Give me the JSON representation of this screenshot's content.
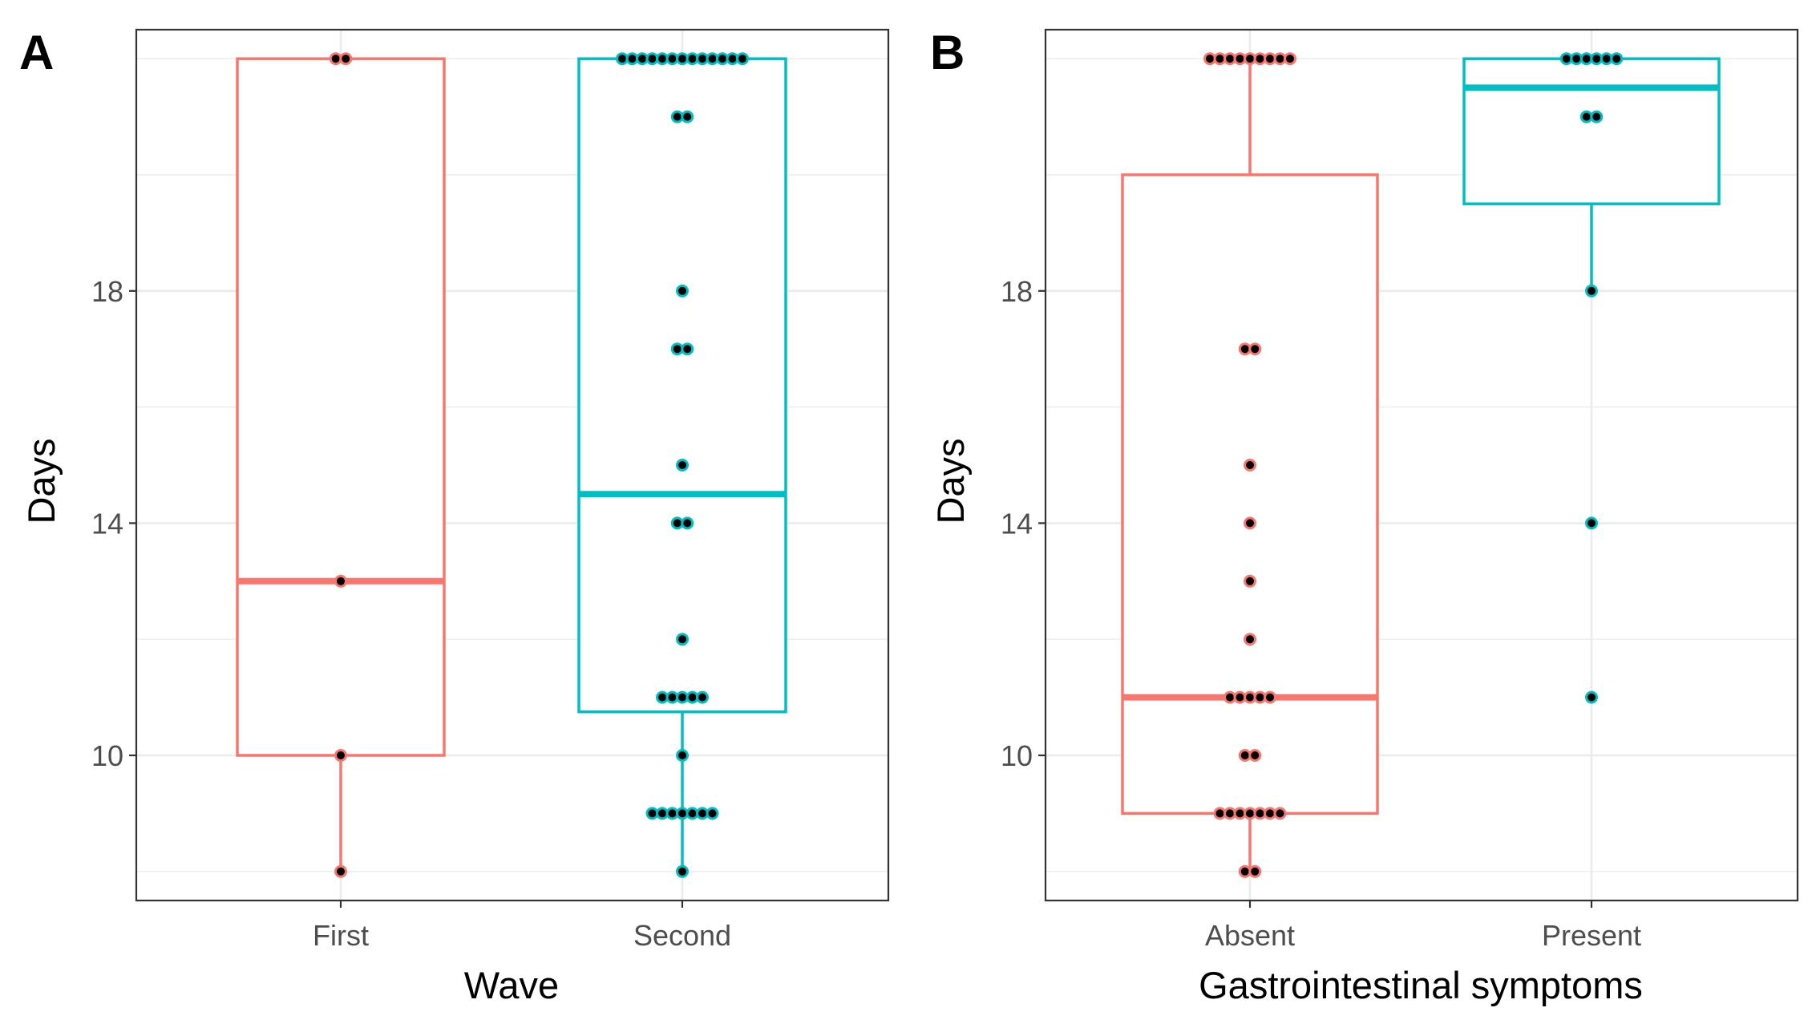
{
  "colors": {
    "red": "#F8766D",
    "teal": "#00BFC4",
    "point": "#000000"
  },
  "chart_data": [
    {
      "type": "boxplot",
      "panel": "A",
      "xlabel": "Wave",
      "ylabel": "Days",
      "ylim": [
        7.5,
        22.5
      ],
      "yticks": [
        10,
        14,
        18
      ],
      "yticklabels": [
        "10",
        "14",
        "18"
      ],
      "categories": [
        "First",
        "Second"
      ],
      "groups": [
        {
          "name": "First",
          "color": "red",
          "box": {
            "q1": 10,
            "median": 13,
            "q3": 22,
            "whisker_low": 8,
            "whisker_high": 22
          },
          "points": [
            {
              "y": 22,
              "count": 2
            },
            {
              "y": 13,
              "count": 1
            },
            {
              "y": 10,
              "count": 1
            },
            {
              "y": 8,
              "count": 1
            }
          ]
        },
        {
          "name": "Second",
          "color": "teal",
          "box": {
            "q1": 10.75,
            "median": 14.5,
            "q3": 22,
            "whisker_low": 8,
            "whisker_high": 22
          },
          "points": [
            {
              "y": 22,
              "count": 13
            },
            {
              "y": 21,
              "count": 2
            },
            {
              "y": 18,
              "count": 1
            },
            {
              "y": 17,
              "count": 2
            },
            {
              "y": 15,
              "count": 1
            },
            {
              "y": 14,
              "count": 2
            },
            {
              "y": 12,
              "count": 1
            },
            {
              "y": 11,
              "count": 5
            },
            {
              "y": 10,
              "count": 1
            },
            {
              "y": 9,
              "count": 7
            },
            {
              "y": 8,
              "count": 1
            }
          ]
        }
      ]
    },
    {
      "type": "boxplot",
      "panel": "B",
      "xlabel": "Gastrointestinal symptoms",
      "ylabel": "Days",
      "ylim": [
        7.5,
        22.5
      ],
      "yticks": [
        10,
        14,
        18
      ],
      "yticklabels": [
        "10",
        "14",
        "18"
      ],
      "categories": [
        "Absent",
        "Present"
      ],
      "groups": [
        {
          "name": "Absent",
          "color": "red",
          "box": {
            "q1": 9,
            "median": 11,
            "q3": 20,
            "whisker_low": 8,
            "whisker_high": 22
          },
          "points": [
            {
              "y": 22,
              "count": 9
            },
            {
              "y": 17,
              "count": 2
            },
            {
              "y": 15,
              "count": 1
            },
            {
              "y": 14,
              "count": 1
            },
            {
              "y": 13,
              "count": 1
            },
            {
              "y": 12,
              "count": 1
            },
            {
              "y": 11,
              "count": 5
            },
            {
              "y": 10,
              "count": 2
            },
            {
              "y": 9,
              "count": 7
            },
            {
              "y": 8,
              "count": 2
            }
          ]
        },
        {
          "name": "Present",
          "color": "teal",
          "box": {
            "q1": 19.5,
            "median": 21.5,
            "q3": 22,
            "whisker_low": 18,
            "whisker_high": 22
          },
          "points": [
            {
              "y": 22,
              "count": 6
            },
            {
              "y": 21,
              "count": 2
            },
            {
              "y": 18,
              "count": 1
            },
            {
              "y": 14,
              "count": 1
            },
            {
              "y": 11,
              "count": 1
            }
          ]
        }
      ]
    }
  ]
}
